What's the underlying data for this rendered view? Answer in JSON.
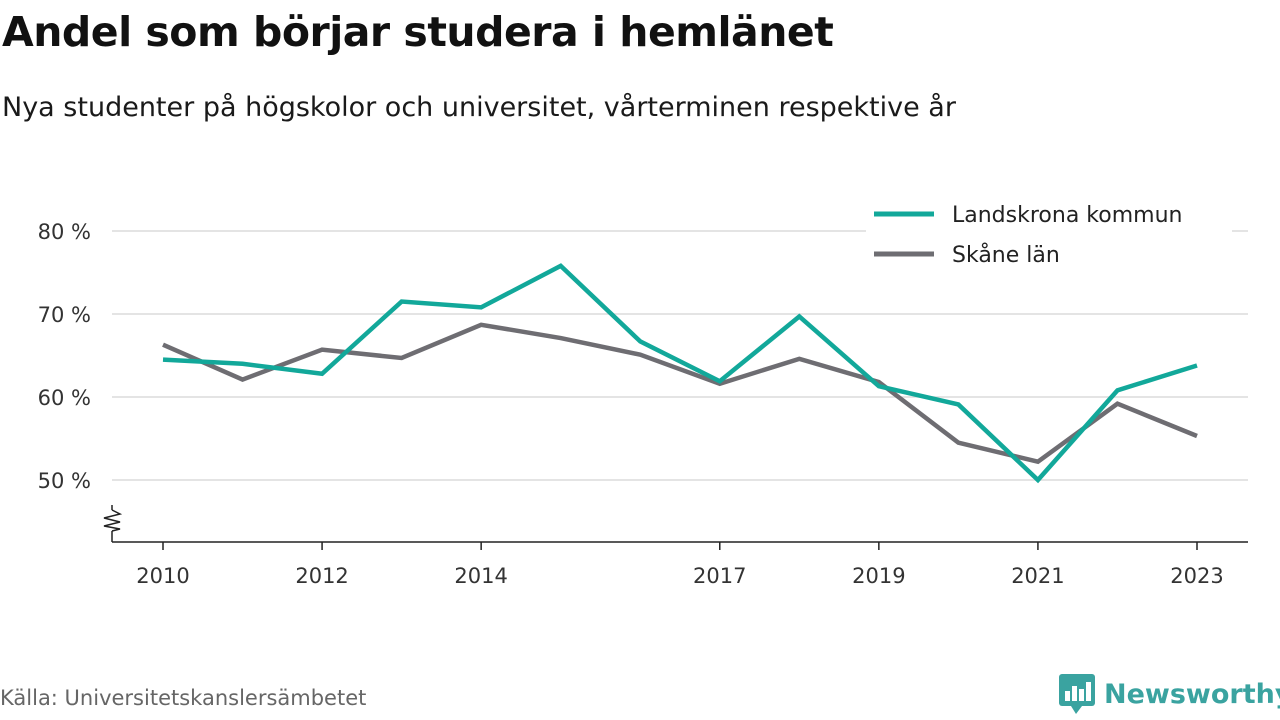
{
  "header": {
    "title": "Andel som börjar studera i hemlänet",
    "subtitle": "Nya studenter på högskolor och universitet, vårterminen respektive år"
  },
  "footer": {
    "source": "Källa: Universitetskanslersämbetet",
    "brand": "Newsworthy",
    "brand_color": "#3aa3a0",
    "brand_icon": "bar-chart-speech-bubble-icon"
  },
  "chart_data": {
    "type": "line",
    "x": [
      2010,
      2011,
      2012,
      2013,
      2014,
      2015,
      2016,
      2017,
      2018,
      2019,
      2020,
      2021,
      2022,
      2023
    ],
    "x_ticks": [
      "2010",
      "2012",
      "2014",
      "2017",
      "2019",
      "2021",
      "2023"
    ],
    "y_ticks": [
      "50 %",
      "60 %",
      "70 %",
      "80 %"
    ],
    "ylim": [
      50,
      80
    ],
    "y_axis_break": true,
    "grid": "horizontal",
    "legend_position": "top-right",
    "series": [
      {
        "name": "Landskrona kommun",
        "color": "#12a89a",
        "values": [
          64.5,
          64.0,
          62.8,
          71.5,
          70.8,
          75.8,
          66.7,
          61.9,
          69.7,
          61.3,
          59.1,
          50.0,
          60.8,
          63.8
        ]
      },
      {
        "name": "Skåne län",
        "color": "#6e6d72",
        "values": [
          66.3,
          62.1,
          65.7,
          64.7,
          68.7,
          67.1,
          65.1,
          61.6,
          64.6,
          61.8,
          54.5,
          52.2,
          59.2,
          55.3
        ]
      }
    ]
  }
}
